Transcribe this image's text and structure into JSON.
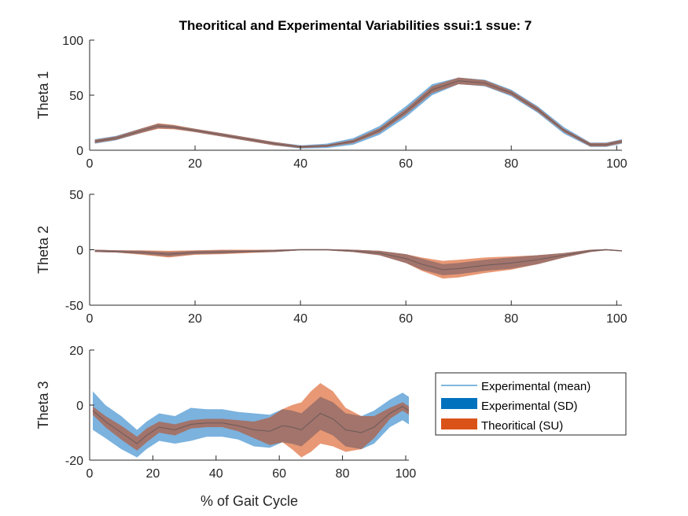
{
  "chart_data": {
    "title": "Theoritical and Experimental Variabilities ssui:1 ssue: 7",
    "xlabel": "% of Gait Cycle",
    "colors": {
      "experimental_mean": "#0072BD",
      "experimental_sd": "#5A9FD6",
      "theoretical_su": "#D95319",
      "overlap": "#A0736B",
      "mean_line": "#6B5A5A"
    },
    "legend": {
      "position": "right of Theta 3",
      "entries": [
        "Experimental (mean)",
        "Experimental (SD)",
        "Theoritical (SU)"
      ]
    },
    "charts": [
      {
        "type": "area",
        "ylabel": "Theta 1",
        "xlim": [
          0,
          101
        ],
        "ylim": [
          0,
          100
        ],
        "xticks": [
          0,
          20,
          40,
          60,
          80,
          100
        ],
        "yticks": [
          0,
          50,
          100
        ],
        "x": [
          1,
          5,
          10,
          13,
          16,
          20,
          25,
          30,
          35,
          40,
          45,
          50,
          55,
          60,
          65,
          70,
          75,
          80,
          85,
          90,
          95,
          98,
          101
        ],
        "mean": [
          8,
          11,
          18,
          22,
          21,
          18,
          14,
          10,
          6,
          3,
          4,
          8,
          18,
          35,
          55,
          63,
          61,
          52,
          37,
          18,
          5,
          5,
          8
        ],
        "sd": [
          2,
          2,
          2,
          2,
          1.5,
          1.5,
          1.5,
          1.5,
          1.5,
          1.5,
          2,
          3,
          4,
          5,
          5,
          3,
          3,
          3,
          3,
          3,
          2,
          2,
          2
        ],
        "su": [
          1.5,
          1.5,
          2,
          2.5,
          2,
          1.5,
          1.5,
          1.5,
          1.5,
          1,
          1,
          1.5,
          2,
          2.5,
          3,
          3,
          2.5,
          2,
          2,
          1.5,
          1.5,
          1.5,
          1.5
        ]
      },
      {
        "type": "area",
        "ylabel": "Theta 2",
        "xlim": [
          0,
          101
        ],
        "ylim": [
          -50,
          50
        ],
        "xticks": [
          0,
          20,
          40,
          60,
          80,
          100
        ],
        "yticks": [
          -50,
          0,
          50
        ],
        "x": [
          1,
          5,
          10,
          15,
          20,
          25,
          30,
          35,
          40,
          45,
          50,
          55,
          60,
          63,
          67,
          70,
          75,
          80,
          85,
          90,
          95,
          98,
          101
        ],
        "mean": [
          -1,
          -1.5,
          -2.5,
          -4,
          -2.5,
          -2,
          -1.5,
          -1,
          0,
          0,
          -1,
          -3,
          -8,
          -13,
          -18,
          -17,
          -14,
          -12,
          -9,
          -5,
          -1,
          0,
          -1
        ],
        "sd": [
          1,
          1,
          1.5,
          2,
          1.5,
          1.5,
          1,
          1,
          0.5,
          0.5,
          1,
          2,
          4,
          5,
          5,
          5,
          5,
          5,
          4,
          2,
          1,
          0.5,
          0.5
        ],
        "su": [
          1,
          1,
          2,
          3,
          2,
          2,
          1.5,
          1,
          0.5,
          0.5,
          1,
          2,
          4,
          6,
          8,
          8,
          7,
          6,
          4,
          2,
          1,
          0.5,
          0.5
        ]
      },
      {
        "type": "area",
        "ylabel": "Theta 3",
        "xlim": [
          0,
          101
        ],
        "ylim": [
          -20,
          20
        ],
        "xticks": [
          0,
          20,
          40,
          60,
          80,
          100
        ],
        "yticks": [
          -20,
          0,
          20
        ],
        "x": [
          1,
          5,
          10,
          15,
          18,
          22,
          27,
          32,
          37,
          42,
          47,
          52,
          57,
          61,
          64,
          67,
          70,
          73,
          77,
          81,
          86,
          90,
          95,
          99,
          101
        ],
        "mean": [
          -2,
          -6,
          -10,
          -14,
          -11,
          -8,
          -9,
          -7,
          -6.5,
          -6.5,
          -7.5,
          -9,
          -9.5,
          -7.5,
          -8,
          -9,
          -6,
          -3,
          -5,
          -9,
          -10,
          -8,
          -3,
          -0.5,
          -2
        ],
        "sd": [
          7,
          6,
          6,
          5,
          5,
          5,
          5,
          6,
          5,
          5,
          5,
          6,
          6,
          6,
          6,
          6,
          6,
          6,
          6,
          6,
          6,
          6,
          5,
          5,
          5
        ],
        "su": [
          1.5,
          2,
          2.5,
          2.5,
          2.5,
          2,
          2,
          1.5,
          1.5,
          1.5,
          2,
          3,
          5,
          6,
          8,
          10,
          11,
          11,
          10,
          8,
          6,
          4,
          2,
          1.5,
          1.5
        ]
      }
    ]
  }
}
